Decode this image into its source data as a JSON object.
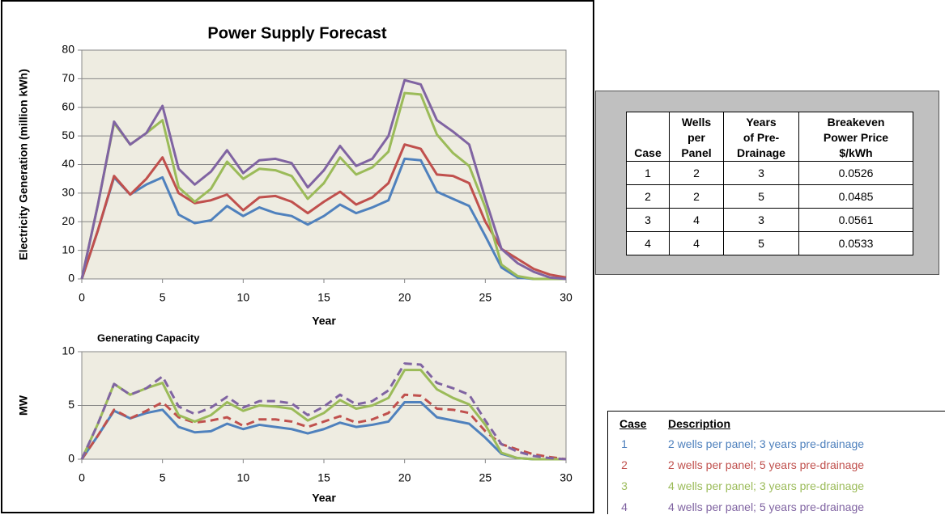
{
  "chart_data": [
    {
      "type": "line",
      "title": "Power Supply Forecast",
      "x_label": "Year",
      "y_label": "Electricity Generation (million kWh)",
      "x": [
        0,
        1,
        2,
        3,
        4,
        5,
        6,
        7,
        8,
        9,
        10,
        11,
        12,
        13,
        14,
        15,
        16,
        17,
        18,
        19,
        20,
        21,
        22,
        23,
        24,
        25,
        26,
        27,
        28,
        29,
        30
      ],
      "xlim": [
        0,
        30
      ],
      "xticks": [
        0,
        5,
        10,
        15,
        20,
        25,
        30
      ],
      "ylim": [
        0,
        80
      ],
      "yticks": [
        0,
        10,
        20,
        30,
        40,
        50,
        60,
        70,
        80
      ],
      "grid": true,
      "background": "#eeece1",
      "series": [
        {
          "name": "1",
          "color": "#4f81bd",
          "values": [
            0,
            17,
            35.5,
            29.5,
            33,
            35.5,
            22.5,
            19.5,
            20.5,
            25.5,
            22,
            25,
            23,
            22,
            19,
            22,
            26,
            23,
            25,
            27.5,
            42,
            41.5,
            30.5,
            28,
            25.5,
            15,
            4,
            0.5,
            0,
            0,
            0
          ]
        },
        {
          "name": "2",
          "color": "#c0504d",
          "values": [
            0,
            17,
            36,
            29.5,
            35,
            42.5,
            30,
            26.5,
            27.5,
            29.5,
            24,
            28.5,
            29,
            27,
            23,
            27,
            30.5,
            26,
            28.5,
            33.5,
            47,
            45.5,
            36.5,
            36,
            33.5,
            20,
            10.5,
            7,
            3.5,
            1.5,
            0.5
          ]
        },
        {
          "name": "3",
          "color": "#9bbb59",
          "values": [
            0,
            26,
            54.5,
            47,
            51,
            55.5,
            32,
            27,
            31.5,
            41,
            35,
            38.5,
            38,
            36,
            28,
            33.5,
            42.5,
            36.5,
            39,
            44.5,
            65,
            64.5,
            50.5,
            44,
            39.5,
            25,
            5,
            1,
            0,
            0,
            0
          ]
        },
        {
          "name": "4",
          "color": "#8064a2",
          "values": [
            0,
            26,
            55,
            47,
            51,
            60.5,
            38.5,
            33,
            37.5,
            45,
            37,
            41.5,
            42,
            40.5,
            32,
            38,
            46.5,
            39.5,
            42,
            50,
            69.5,
            68,
            55.5,
            51.5,
            47,
            28,
            10.5,
            5.5,
            2.5,
            0.5,
            0
          ]
        }
      ]
    },
    {
      "type": "line",
      "title": "Generating Capacity",
      "x_label": "Year",
      "y_label": "MW",
      "x": [
        0,
        1,
        2,
        3,
        4,
        5,
        6,
        7,
        8,
        9,
        10,
        11,
        12,
        13,
        14,
        15,
        16,
        17,
        18,
        19,
        20,
        21,
        22,
        23,
        24,
        25,
        26,
        27,
        28,
        29,
        30
      ],
      "xlim": [
        0,
        30
      ],
      "xticks": [
        0,
        5,
        10,
        15,
        20,
        25,
        30
      ],
      "ylim": [
        0,
        10
      ],
      "yticks": [
        0,
        5,
        10
      ],
      "grid": true,
      "background": "#eeece1",
      "series": [
        {
          "color": "#4f81bd",
          "line_style": "solid",
          "values": [
            0,
            2.2,
            4.5,
            3.8,
            4.3,
            4.6,
            3,
            2.5,
            2.6,
            3.3,
            2.8,
            3.2,
            3,
            2.8,
            2.4,
            2.8,
            3.4,
            3,
            3.2,
            3.5,
            5.3,
            5.3,
            3.9,
            3.6,
            3.3,
            2,
            0.5,
            0.1,
            0,
            0,
            0
          ]
        },
        {
          "color": "#c0504d",
          "line_style": "dashed",
          "values": [
            0,
            2.2,
            4.6,
            3.8,
            4.5,
            5.3,
            3.9,
            3.4,
            3.6,
            3.9,
            3.1,
            3.7,
            3.7,
            3.5,
            3,
            3.5,
            4,
            3.4,
            3.7,
            4.3,
            6,
            5.9,
            4.7,
            4.6,
            4.3,
            2.6,
            1.4,
            0.9,
            0.45,
            0.2,
            0
          ]
        },
        {
          "color": "#9bbb59",
          "line_style": "solid",
          "values": [
            0,
            3.3,
            7,
            6,
            6.6,
            7.1,
            4.1,
            3.5,
            4.1,
            5.3,
            4.5,
            5,
            4.9,
            4.7,
            3.6,
            4.3,
            5.5,
            4.7,
            5,
            5.7,
            8.3,
            8.3,
            6.5,
            5.7,
            5.1,
            3.2,
            0.6,
            0.1,
            0,
            0,
            0
          ]
        },
        {
          "color": "#8064a2",
          "line_style": "dashed",
          "values": [
            0,
            3.3,
            7,
            6,
            6.6,
            7.7,
            4.9,
            4.2,
            4.8,
            5.8,
            4.8,
            5.4,
            5.4,
            5.2,
            4.1,
            4.9,
            6,
            5.1,
            5.4,
            6.4,
            8.9,
            8.8,
            7.1,
            6.6,
            6,
            3.6,
            1.4,
            0.7,
            0.3,
            0.1,
            0
          ]
        }
      ]
    }
  ],
  "table": {
    "header": [
      [
        "Case"
      ],
      [
        "Wells",
        "per",
        "Panel"
      ],
      [
        "Years",
        "of Pre-",
        "Drainage"
      ],
      [
        "Breakeven",
        "Power Price",
        "$/kWh"
      ]
    ],
    "rows": [
      [
        1,
        2,
        3,
        0.0526
      ],
      [
        2,
        2,
        5,
        0.0485
      ],
      [
        3,
        4,
        3,
        0.0561
      ],
      [
        4,
        4,
        5,
        0.0533
      ]
    ]
  },
  "legend": {
    "header": [
      "Case",
      "Description"
    ],
    "descriptions": [
      "2 wells per panel; 3 years pre-drainage",
      "2 wells per panel; 5 years pre-drainage",
      "4 wells per panel; 3 years pre-drainage",
      "4 wells per panel; 5 years pre-drainage"
    ]
  }
}
